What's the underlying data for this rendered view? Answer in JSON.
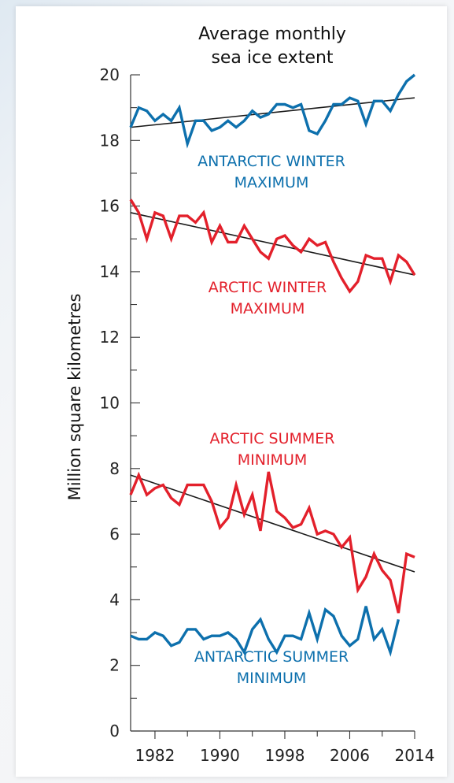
{
  "chart_data": {
    "type": "line",
    "title_lines": [
      "Average monthly",
      "sea ice extent"
    ],
    "xlabel": "",
    "ylabel": "Million square kilometres",
    "xlim": [
      1979,
      2014
    ],
    "ylim": [
      0,
      20
    ],
    "x_ticks": [
      1982,
      1990,
      1998,
      2006,
      2014
    ],
    "y_ticks": [
      0,
      2,
      4,
      6,
      8,
      10,
      12,
      14,
      16,
      18,
      20
    ],
    "grid": false,
    "series": [
      {
        "name": "ANTARCTIC WINTER MAXIMUM",
        "label_lines": [
          "ANTARCTIC WINTER",
          "MAXIMUM"
        ],
        "color": "#0d70ad",
        "x": [
          1979,
          1980,
          1981,
          1982,
          1983,
          1984,
          1985,
          1986,
          1987,
          1988,
          1989,
          1990,
          1991,
          1992,
          1993,
          1994,
          1995,
          1996,
          1997,
          1998,
          1999,
          2000,
          2001,
          2002,
          2003,
          2004,
          2005,
          2006,
          2007,
          2008,
          2009,
          2010,
          2011,
          2012,
          2013,
          2014
        ],
        "y": [
          18.4,
          19.0,
          18.9,
          18.6,
          18.8,
          18.6,
          19.0,
          17.9,
          18.6,
          18.6,
          18.3,
          18.4,
          18.6,
          18.4,
          18.6,
          18.9,
          18.7,
          18.8,
          19.1,
          19.1,
          19.0,
          19.1,
          18.3,
          18.2,
          18.6,
          19.1,
          19.1,
          19.3,
          19.2,
          18.5,
          19.2,
          19.2,
          18.9,
          19.4,
          19.8,
          20.0
        ],
        "trend": [
          18.4,
          19.3
        ]
      },
      {
        "name": "ARCTIC WINTER MAXIMUM",
        "label_lines": [
          "ARCTIC WINTER",
          "MAXIMUM"
        ],
        "color": "#e3202b",
        "x": [
          1979,
          1980,
          1981,
          1982,
          1983,
          1984,
          1985,
          1986,
          1987,
          1988,
          1989,
          1990,
          1991,
          1992,
          1993,
          1994,
          1995,
          1996,
          1997,
          1998,
          1999,
          2000,
          2001,
          2002,
          2003,
          2004,
          2005,
          2006,
          2007,
          2008,
          2009,
          2010,
          2011,
          2012,
          2013,
          2014
        ],
        "y": [
          16.2,
          15.8,
          15.0,
          15.8,
          15.7,
          15.0,
          15.7,
          15.7,
          15.5,
          15.8,
          14.9,
          15.4,
          14.9,
          14.9,
          15.4,
          15.0,
          14.6,
          14.4,
          15.0,
          15.1,
          14.8,
          14.6,
          15.0,
          14.8,
          14.9,
          14.3,
          13.8,
          13.4,
          13.7,
          14.5,
          14.4,
          14.4,
          13.7,
          14.5,
          14.3,
          13.9
        ],
        "trend": [
          15.8,
          13.9
        ]
      },
      {
        "name": "ARCTIC SUMMER MINIMUM",
        "label_lines": [
          "ARCTIC SUMMER",
          "MINIMUM"
        ],
        "color": "#e3202b",
        "x": [
          1979,
          1980,
          1981,
          1982,
          1983,
          1984,
          1985,
          1986,
          1987,
          1988,
          1989,
          1990,
          1991,
          1992,
          1993,
          1994,
          1995,
          1996,
          1997,
          1998,
          1999,
          2000,
          2001,
          2002,
          2003,
          2004,
          2005,
          2006,
          2007,
          2008,
          2009,
          2010,
          2011,
          2012,
          2013,
          2014
        ],
        "y": [
          7.2,
          7.8,
          7.2,
          7.4,
          7.5,
          7.1,
          6.9,
          7.5,
          7.5,
          7.5,
          7.0,
          6.2,
          6.5,
          7.5,
          6.6,
          7.2,
          6.1,
          7.9,
          6.7,
          6.5,
          6.2,
          6.3,
          6.8,
          6.0,
          6.1,
          6.0,
          5.6,
          5.9,
          4.3,
          4.7,
          5.4,
          4.9,
          4.6,
          3.6,
          5.4,
          5.3
        ],
        "trend": [
          7.8,
          4.85
        ]
      },
      {
        "name": "ANTARCTIC SUMMER MINIMUM",
        "label_lines": [
          "ANTARCTIC SUMMER",
          "MINIMUM"
        ],
        "color": "#0d70ad",
        "x": [
          1979,
          1980,
          1981,
          1982,
          1983,
          1984,
          1985,
          1986,
          1987,
          1988,
          1989,
          1990,
          1991,
          1992,
          1993,
          1994,
          1995,
          1996,
          1997,
          1998,
          1999,
          2000,
          2001,
          2002,
          2003,
          2004,
          2005,
          2006,
          2007,
          2008,
          2009,
          2010,
          2011,
          2012,
          2013
        ],
        "y": [
          2.9,
          2.8,
          2.8,
          3.0,
          2.9,
          2.6,
          2.7,
          3.1,
          3.1,
          2.8,
          2.9,
          2.9,
          3.0,
          2.8,
          2.4,
          3.1,
          3.4,
          2.8,
          2.4,
          2.9,
          2.9,
          2.8,
          3.6,
          2.8,
          3.7,
          3.5,
          2.9,
          2.6,
          2.8,
          3.8,
          2.8,
          3.1,
          2.4,
          3.4,
          null
        ]
      }
    ]
  }
}
